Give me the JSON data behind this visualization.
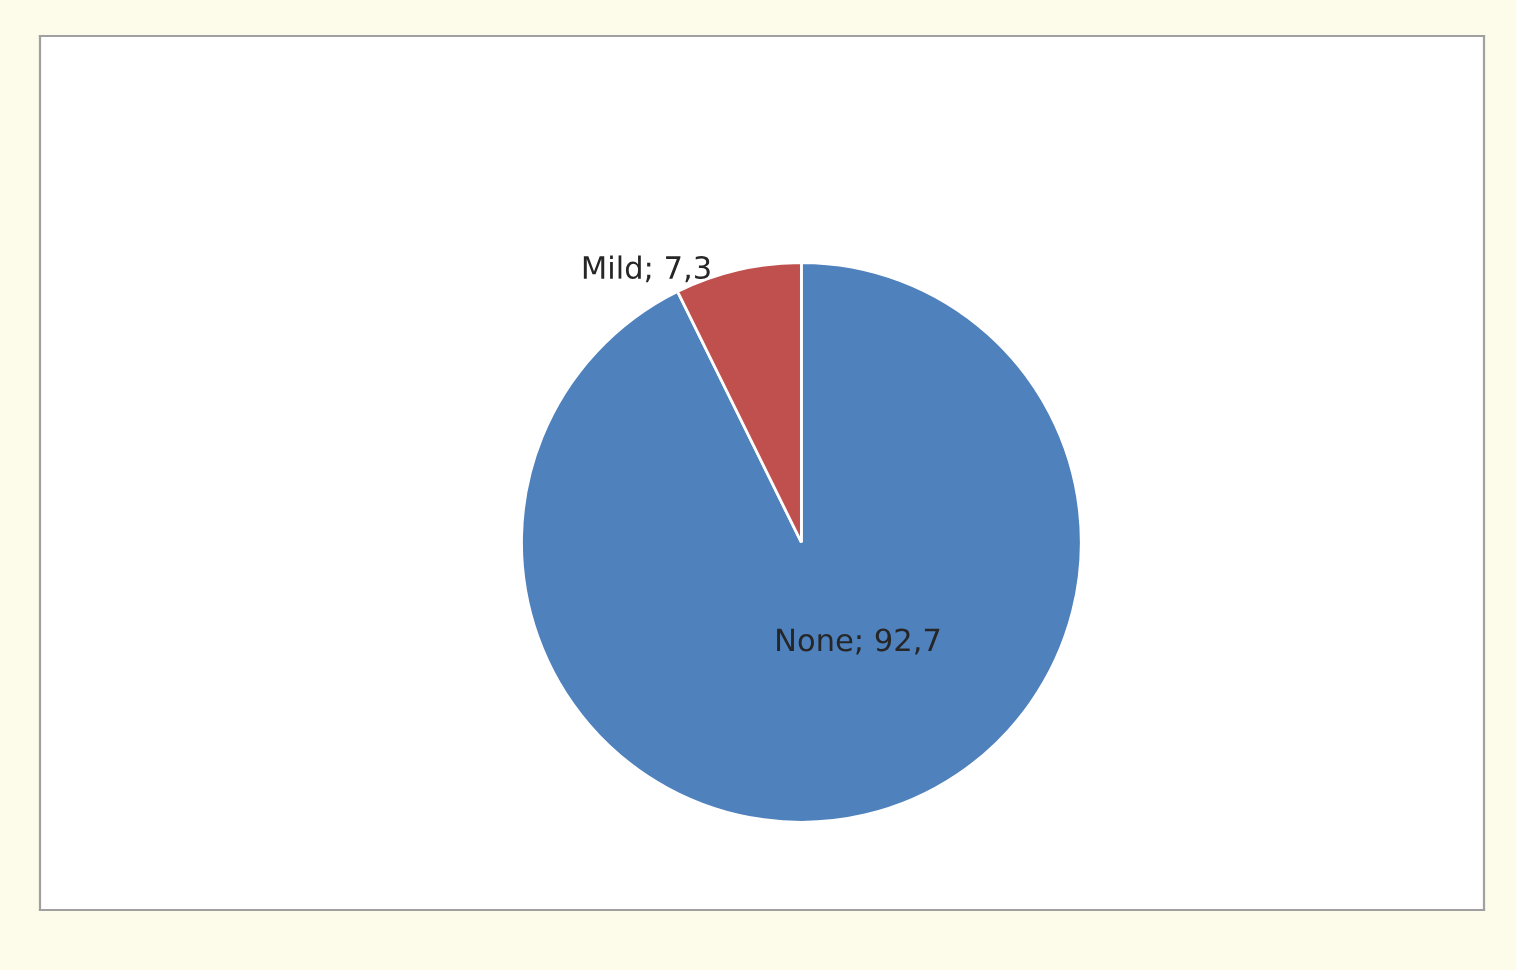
{
  "chart_data": {
    "type": "pie",
    "categories": [
      "None",
      "Mild"
    ],
    "values": [
      92.7,
      7.3
    ],
    "value_labels": [
      "92,7",
      "7,3"
    ],
    "colors": [
      "#4f81bd",
      "#c0504d"
    ],
    "legend": false
  }
}
